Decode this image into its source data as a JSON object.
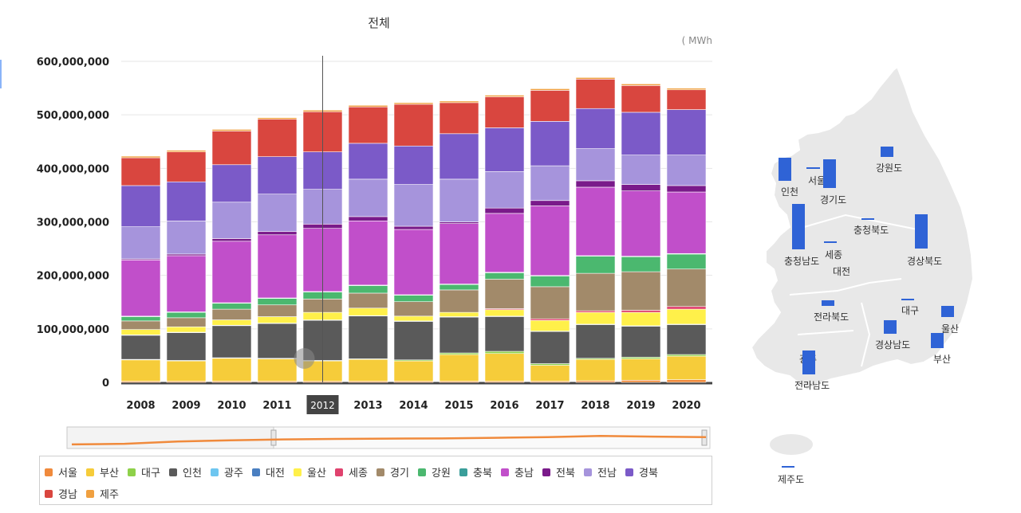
{
  "chart_data": {
    "type": "bar",
    "stacked": true,
    "title": "전체",
    "unit_label": "( MWh",
    "ylim": [
      0,
      600000000
    ],
    "y_ticks": [
      "0",
      "100,000,000",
      "200,000,000",
      "300,000,000",
      "400,000,000",
      "500,000,000",
      "600,000,000"
    ],
    "categories": [
      "2008",
      "2009",
      "2010",
      "2011",
      "2012",
      "2013",
      "2014",
      "2015",
      "2016",
      "2017",
      "2018",
      "2019",
      "2020"
    ],
    "selected_category": "2012",
    "series": [
      {
        "name": "서울",
        "color": "#f08a3c",
        "values": [
          2000000,
          2000000,
          2000000,
          2000000,
          2000000,
          2000000,
          2000000,
          2000000,
          2000000,
          2000000,
          3000000,
          4000000,
          5000000
        ]
      },
      {
        "name": "부산",
        "color": "#f6cc3a",
        "values": [
          40000000,
          38000000,
          43000000,
          42000000,
          38000000,
          41000000,
          38000000,
          50000000,
          52000000,
          30000000,
          40000000,
          40000000,
          44000000
        ]
      },
      {
        "name": "대구",
        "color": "#8ed14a",
        "values": [
          1000000,
          1000000,
          1000000,
          1000000,
          1000000,
          1000000,
          2000000,
          3000000,
          4000000,
          3000000,
          2000000,
          3000000,
          3000000
        ]
      },
      {
        "name": "인천",
        "color": "#5a5a5a",
        "values": [
          45000000,
          52000000,
          60000000,
          65000000,
          75000000,
          80000000,
          72000000,
          67000000,
          65000000,
          60000000,
          63000000,
          58000000,
          56000000
        ]
      },
      {
        "name": "광주",
        "color": "#6ec6f0",
        "values": [
          500000,
          500000,
          500000,
          500000,
          500000,
          500000,
          500000,
          500000,
          500000,
          500000,
          500000,
          500000,
          500000
        ]
      },
      {
        "name": "대전",
        "color": "#4a7fc1",
        "values": [
          300000,
          300000,
          300000,
          300000,
          300000,
          300000,
          300000,
          300000,
          300000,
          300000,
          300000,
          300000,
          300000
        ]
      },
      {
        "name": "울산",
        "color": "#fff04a",
        "values": [
          10000000,
          10000000,
          10000000,
          12000000,
          14000000,
          14000000,
          9000000,
          8000000,
          12000000,
          20000000,
          22000000,
          25000000,
          28000000
        ]
      },
      {
        "name": "세종",
        "color": "#e0426e",
        "values": [
          0,
          0,
          0,
          0,
          0,
          0,
          0,
          0,
          2000000,
          3000000,
          3000000,
          4000000,
          5000000
        ]
      },
      {
        "name": "경기",
        "color": "#a28a6a",
        "values": [
          16000000,
          17000000,
          20000000,
          22000000,
          25000000,
          28000000,
          27000000,
          42000000,
          55000000,
          60000000,
          70000000,
          72000000,
          70000000
        ]
      },
      {
        "name": "강원",
        "color": "#4bb86f",
        "values": [
          8000000,
          10000000,
          11000000,
          12000000,
          13000000,
          14000000,
          12000000,
          10000000,
          12000000,
          20000000,
          32000000,
          28000000,
          28000000
        ]
      },
      {
        "name": "충북",
        "color": "#3a9e9a",
        "values": [
          1000000,
          1000000,
          1000000,
          1000000,
          1000000,
          1000000,
          1000000,
          1000000,
          1000000,
          1000000,
          1000000,
          1000000,
          1000000
        ]
      },
      {
        "name": "충남",
        "color": "#c14fca",
        "values": [
          105000000,
          105000000,
          115000000,
          118000000,
          118000000,
          120000000,
          122000000,
          113000000,
          110000000,
          130000000,
          128000000,
          122000000,
          115000000
        ]
      },
      {
        "name": "전북",
        "color": "#7a1a8a",
        "values": [
          2000000,
          3000000,
          5000000,
          6000000,
          8000000,
          8000000,
          6000000,
          3000000,
          10000000,
          10000000,
          12000000,
          12000000,
          12000000
        ]
      },
      {
        "name": "전남",
        "color": "#a694dc",
        "values": [
          60000000,
          62000000,
          68000000,
          70000000,
          65000000,
          70000000,
          78000000,
          80000000,
          68000000,
          65000000,
          60000000,
          55000000,
          57000000
        ]
      },
      {
        "name": "경북",
        "color": "#7b5ac8",
        "values": [
          77000000,
          73000000,
          70000000,
          70000000,
          70000000,
          67000000,
          72000000,
          85000000,
          82000000,
          83000000,
          75000000,
          80000000,
          85000000
        ]
      },
      {
        "name": "경남",
        "color": "#d9463f",
        "values": [
          52000000,
          56000000,
          63000000,
          70000000,
          75000000,
          68000000,
          78000000,
          58000000,
          58000000,
          58000000,
          55000000,
          50000000,
          37000000
        ]
      },
      {
        "name": "제주",
        "color": "#f0a040",
        "values": [
          3000000,
          3000000,
          3000000,
          3000000,
          3000000,
          3000000,
          3000000,
          3000000,
          3000000,
          3000000,
          3000000,
          3000000,
          3000000
        ]
      }
    ]
  },
  "map": {
    "bar_color": "#2f63d6",
    "regions": [
      {
        "name": "인천",
        "value": 25
      },
      {
        "name": "서울",
        "value": 1
      },
      {
        "name": "경기도",
        "value": 38
      },
      {
        "name": "강원도",
        "value": 12
      },
      {
        "name": "충청북도",
        "value": 1
      },
      {
        "name": "충청남도",
        "value": 58
      },
      {
        "name": "세종",
        "value": 1
      },
      {
        "name": "대전",
        "value": 0
      },
      {
        "name": "경상북도",
        "value": 44
      },
      {
        "name": "전라북도",
        "value": 6
      },
      {
        "name": "대구",
        "value": 1
      },
      {
        "name": "울산",
        "value": 14
      },
      {
        "name": "경상남도",
        "value": 16
      },
      {
        "name": "부산",
        "value": 20
      },
      {
        "name": "광주",
        "value": 0
      },
      {
        "name": "전라남도",
        "value": 30
      },
      {
        "name": "제주도",
        "value": 1
      }
    ]
  }
}
